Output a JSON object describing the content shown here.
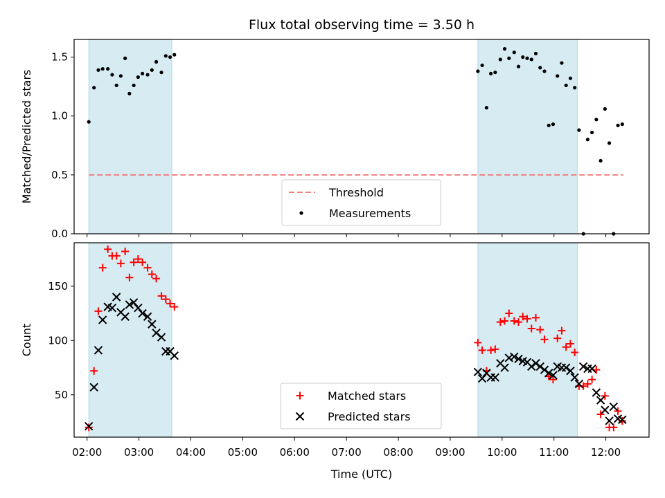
{
  "title": "Flux total observing time = 3.50 h",
  "xlabel": "Time (UTC)",
  "colors": {
    "shade": "#add8e6",
    "threshold": "#f08080",
    "matched": "#ff0000",
    "predicted": "#000000",
    "measurement": "#000000"
  },
  "chart_data": [
    {
      "type": "scatter",
      "ylabel": "Matched/Predicted stars",
      "xlim": [
        "01:45",
        "12:50"
      ],
      "ylim": [
        0,
        1.65
      ],
      "yticks": [
        "0.0",
        "0.5",
        "1.0",
        "1.5"
      ],
      "shaded_intervals": [
        [
          "02:02",
          "03:38"
        ],
        [
          "09:32",
          "11:27"
        ]
      ],
      "threshold": {
        "name": "Threshold",
        "value": 0.5,
        "x": [
          "02:02",
          "12:20"
        ]
      },
      "legend": {
        "placement": "lower center",
        "entries": [
          "Threshold",
          "Measurements"
        ]
      },
      "series": [
        {
          "name": "Measurements",
          "points": [
            [
              "02:02",
              0.95
            ],
            [
              "02:08",
              1.24
            ],
            [
              "02:13",
              1.39
            ],
            [
              "02:18",
              1.4
            ],
            [
              "02:24",
              1.4
            ],
            [
              "02:29",
              1.35
            ],
            [
              "02:34",
              1.26
            ],
            [
              "02:39",
              1.34
            ],
            [
              "02:44",
              1.49
            ],
            [
              "02:49",
              1.19
            ],
            [
              "02:54",
              1.26
            ],
            [
              "02:59",
              1.33
            ],
            [
              "03:04",
              1.36
            ],
            [
              "03:10",
              1.35
            ],
            [
              "03:15",
              1.39
            ],
            [
              "03:20",
              1.46
            ],
            [
              "03:26",
              1.37
            ],
            [
              "03:31",
              1.51
            ],
            [
              "03:36",
              1.5
            ],
            [
              "03:41",
              1.52
            ],
            [
              "09:32",
              1.38
            ],
            [
              "09:37",
              1.43
            ],
            [
              "09:42",
              1.07
            ],
            [
              "09:47",
              1.36
            ],
            [
              "09:52",
              1.37
            ],
            [
              "09:58",
              1.48
            ],
            [
              "10:03",
              1.57
            ],
            [
              "10:08",
              1.49
            ],
            [
              "10:14",
              1.54
            ],
            [
              "10:19",
              1.42
            ],
            [
              "10:24",
              1.5
            ],
            [
              "10:29",
              1.49
            ],
            [
              "10:34",
              1.48
            ],
            [
              "10:39",
              1.53
            ],
            [
              "10:44",
              1.41
            ],
            [
              "10:49",
              1.38
            ],
            [
              "10:54",
              0.92
            ],
            [
              "10:59",
              0.93
            ],
            [
              "11:04",
              1.34
            ],
            [
              "11:09",
              1.45
            ],
            [
              "11:14",
              1.26
            ],
            [
              "11:19",
              1.32
            ],
            [
              "11:24",
              1.24
            ],
            [
              "11:29",
              0.88
            ],
            [
              "11:34",
              0.0
            ],
            [
              "11:39",
              0.8
            ],
            [
              "11:44",
              0.86
            ],
            [
              "11:49",
              0.97
            ],
            [
              "11:54",
              0.62
            ],
            [
              "11:59",
              1.06
            ],
            [
              "12:04",
              0.77
            ],
            [
              "12:09",
              0.0
            ],
            [
              "12:14",
              0.92
            ],
            [
              "12:19",
              0.93
            ]
          ]
        }
      ]
    },
    {
      "type": "scatter",
      "ylabel": "Count",
      "xlim": [
        "01:45",
        "12:50"
      ],
      "ylim": [
        11,
        190
      ],
      "yticks": [
        "50",
        "100",
        "150"
      ],
      "xticks": [
        "02:00",
        "03:00",
        "04:00",
        "05:00",
        "06:00",
        "07:00",
        "08:00",
        "09:00",
        "10:00",
        "11:00",
        "12:00"
      ],
      "shaded_intervals": [
        [
          "02:02",
          "03:38"
        ],
        [
          "09:32",
          "11:27"
        ]
      ],
      "legend": {
        "placement": "lower center",
        "entries": [
          "Matched stars",
          "Predicted stars"
        ]
      },
      "series": [
        {
          "name": "Matched stars",
          "marker": "+",
          "points": [
            [
              "02:02",
              20
            ],
            [
              "02:08",
              72
            ],
            [
              "02:13",
              127
            ],
            [
              "02:18",
              167
            ],
            [
              "02:24",
              184
            ],
            [
              "02:29",
              178
            ],
            [
              "02:34",
              178
            ],
            [
              "02:39",
              171
            ],
            [
              "02:44",
              182
            ],
            [
              "02:49",
              158
            ],
            [
              "02:54",
              172
            ],
            [
              "02:59",
              175
            ],
            [
              "03:04",
              172
            ],
            [
              "03:10",
              167
            ],
            [
              "03:15",
              161
            ],
            [
              "03:20",
              157
            ],
            [
              "03:26",
              141
            ],
            [
              "03:31",
              138
            ],
            [
              "03:36",
              134
            ],
            [
              "03:41",
              131
            ],
            [
              "09:32",
              98
            ],
            [
              "09:37",
              91
            ],
            [
              "09:42",
              72
            ],
            [
              "09:47",
              91
            ],
            [
              "09:52",
              92
            ],
            [
              "09:58",
              117
            ],
            [
              "10:03",
              118
            ],
            [
              "10:08",
              125
            ],
            [
              "10:14",
              118
            ],
            [
              "10:19",
              117
            ],
            [
              "10:24",
              122
            ],
            [
              "10:29",
              120
            ],
            [
              "10:34",
              111
            ],
            [
              "10:39",
              121
            ],
            [
              "10:44",
              110
            ],
            [
              "10:49",
              101
            ],
            [
              "10:54",
              67
            ],
            [
              "10:59",
              64
            ],
            [
              "11:04",
              102
            ],
            [
              "11:09",
              109
            ],
            [
              "11:14",
              94
            ],
            [
              "11:19",
              97
            ],
            [
              "11:24",
              89
            ],
            [
              "11:29",
              58
            ],
            [
              "11:34",
              58
            ],
            [
              "11:39",
              60
            ],
            [
              "11:44",
              64
            ],
            [
              "11:49",
              73
            ],
            [
              "11:54",
              32
            ],
            [
              "11:59",
              49
            ],
            [
              "12:04",
              20
            ],
            [
              "12:09",
              20
            ],
            [
              "12:14",
              35
            ],
            [
              "12:19",
              26
            ]
          ]
        },
        {
          "name": "Predicted stars",
          "marker": "x",
          "points": [
            [
              "02:02",
              21
            ],
            [
              "02:08",
              57
            ],
            [
              "02:13",
              91
            ],
            [
              "02:18",
              119
            ],
            [
              "02:24",
              131
            ],
            [
              "02:29",
              130
            ],
            [
              "02:34",
              140
            ],
            [
              "02:39",
              126
            ],
            [
              "02:44",
              122
            ],
            [
              "02:49",
              133
            ],
            [
              "02:54",
              135
            ],
            [
              "02:59",
              130
            ],
            [
              "03:04",
              125
            ],
            [
              "03:10",
              122
            ],
            [
              "03:15",
              115
            ],
            [
              "03:20",
              107
            ],
            [
              "03:26",
              103
            ],
            [
              "03:31",
              90
            ],
            [
              "03:36",
              90
            ],
            [
              "03:41",
              86
            ],
            [
              "09:32",
              71
            ],
            [
              "09:37",
              65
            ],
            [
              "09:42",
              70
            ],
            [
              "09:47",
              66
            ],
            [
              "09:52",
              66
            ],
            [
              "09:58",
              79
            ],
            [
              "10:03",
              75
            ],
            [
              "10:08",
              84
            ],
            [
              "10:14",
              85
            ],
            [
              "10:19",
              83
            ],
            [
              "10:24",
              81
            ],
            [
              "10:29",
              80
            ],
            [
              "10:34",
              76
            ],
            [
              "10:39",
              79
            ],
            [
              "10:44",
              76
            ],
            [
              "10:49",
              73
            ],
            [
              "10:54",
              70
            ],
            [
              "10:59",
              68
            ],
            [
              "11:04",
              76
            ],
            [
              "11:09",
              75
            ],
            [
              "11:14",
              75
            ],
            [
              "11:19",
              72
            ],
            [
              "11:24",
              66
            ],
            [
              "11:29",
              60
            ],
            [
              "11:34",
              76
            ],
            [
              "11:39",
              74
            ],
            [
              "11:44",
              74
            ],
            [
              "11:49",
              52
            ],
            [
              "11:54",
              45
            ],
            [
              "11:59",
              36
            ],
            [
              "12:04",
              26
            ],
            [
              "12:09",
              39
            ],
            [
              "12:14",
              28
            ],
            [
              "12:19",
              27
            ]
          ]
        }
      ]
    }
  ]
}
